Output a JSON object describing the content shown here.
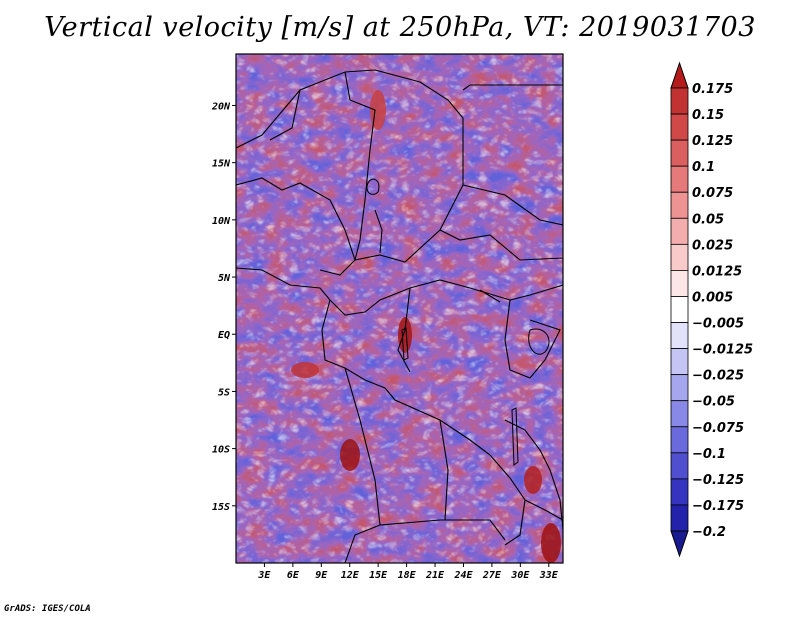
{
  "title": "Vertical velocity [m/s] at 250hPa, VT: 2019031703",
  "credit": "GrADS: IGES/COLA",
  "map": {
    "lon_range": [
      0,
      34.5
    ],
    "lat_range": [
      -20,
      24.5
    ],
    "lat_ticks": [
      {
        "value": 20,
        "label": "20N"
      },
      {
        "value": 15,
        "label": "15N"
      },
      {
        "value": 10,
        "label": "10N"
      },
      {
        "value": 5,
        "label": "5N"
      },
      {
        "value": 0,
        "label": "EQ"
      },
      {
        "value": -5,
        "label": "5S"
      },
      {
        "value": -10,
        "label": "10S"
      },
      {
        "value": -15,
        "label": "15S"
      }
    ],
    "lon_ticks": [
      {
        "value": 3,
        "label": "3E"
      },
      {
        "value": 6,
        "label": "6E"
      },
      {
        "value": 9,
        "label": "9E"
      },
      {
        "value": 12,
        "label": "12E"
      },
      {
        "value": 15,
        "label": "15E"
      },
      {
        "value": 18,
        "label": "18E"
      },
      {
        "value": 21,
        "label": "21E"
      },
      {
        "value": 24,
        "label": "24E"
      },
      {
        "value": 27,
        "label": "27E"
      },
      {
        "value": 30,
        "label": "30E"
      },
      {
        "value": 33,
        "label": "33E"
      }
    ]
  },
  "colorbar": {
    "labels": [
      "0.175",
      "0.15",
      "0.125",
      "0.1",
      "0.075",
      "0.05",
      "0.025",
      "0.0125",
      "0.005",
      "−0.005",
      "−0.0125",
      "−0.025",
      "−0.05",
      "−0.075",
      "−0.1",
      "−0.125",
      "−0.175",
      "−0.2"
    ],
    "colors": [
      "#b41b1b",
      "#c23232",
      "#d04848",
      "#dc5f5f",
      "#e67a7a",
      "#ee9393",
      "#f4adad",
      "#f9caca",
      "#fde6e6",
      "#ffffff",
      "#e2e2fb",
      "#c4c4f5",
      "#a6a6ee",
      "#8888e6",
      "#6a6add",
      "#4f4fcf",
      "#3434c0",
      "#2222aa",
      "#1a1a90"
    ]
  }
}
